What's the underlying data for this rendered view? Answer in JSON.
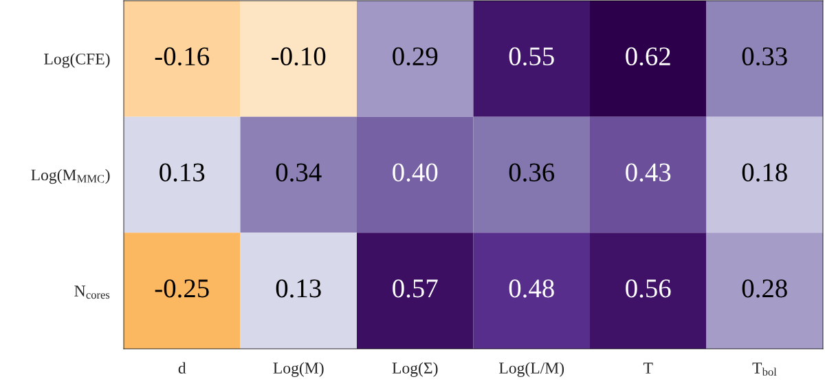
{
  "chart_data": {
    "type": "heatmap",
    "categories": [
      "d",
      "Log(M)",
      "Log(Σ)",
      "Log(L/M)",
      "T",
      "T$_{bol}$"
    ],
    "y_categories": [
      "Log(CFE)",
      "Log(M$_{MMC}$)",
      "N$_{cores}$"
    ],
    "cells": [
      [
        -0.16,
        -0.1,
        0.29,
        0.55,
        0.62,
        0.33
      ],
      [
        0.13,
        0.34,
        0.4,
        0.36,
        0.43,
        0.18
      ],
      [
        -0.25,
        0.13,
        0.57,
        0.48,
        0.56,
        0.28
      ]
    ],
    "cell_labels": [
      [
        "-0.16",
        "-0.10",
        "0.29",
        "0.55",
        "0.62",
        "0.33"
      ],
      [
        "0.13",
        "0.34",
        "0.40",
        "0.36",
        "0.43",
        "0.18"
      ],
      [
        "-0.25",
        "0.13",
        "0.57",
        "0.48",
        "0.56",
        "0.28"
      ]
    ]
  }
}
